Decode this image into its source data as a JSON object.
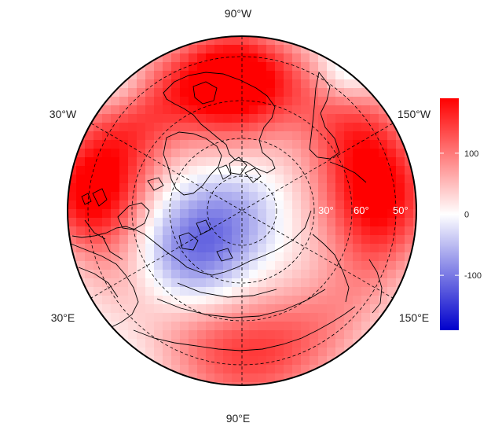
{
  "map": {
    "projection": "north-polar-stereographic",
    "longitude_labels": [
      "90°W",
      "30°W",
      "150°W",
      "30°E",
      "150°E",
      "90°E"
    ],
    "latitude_labels": [
      "30°",
      "60°",
      "50°"
    ],
    "colors": {
      "low": "#0000cc",
      "mid": "#ffffff",
      "high": "#ff0000",
      "coast": "#000000",
      "grid": "#000000"
    }
  },
  "colorbar": {
    "ticks": [
      "100",
      "0",
      "-100"
    ],
    "tick_values": [
      100,
      0,
      -100
    ],
    "range": [
      -190,
      190
    ]
  }
}
